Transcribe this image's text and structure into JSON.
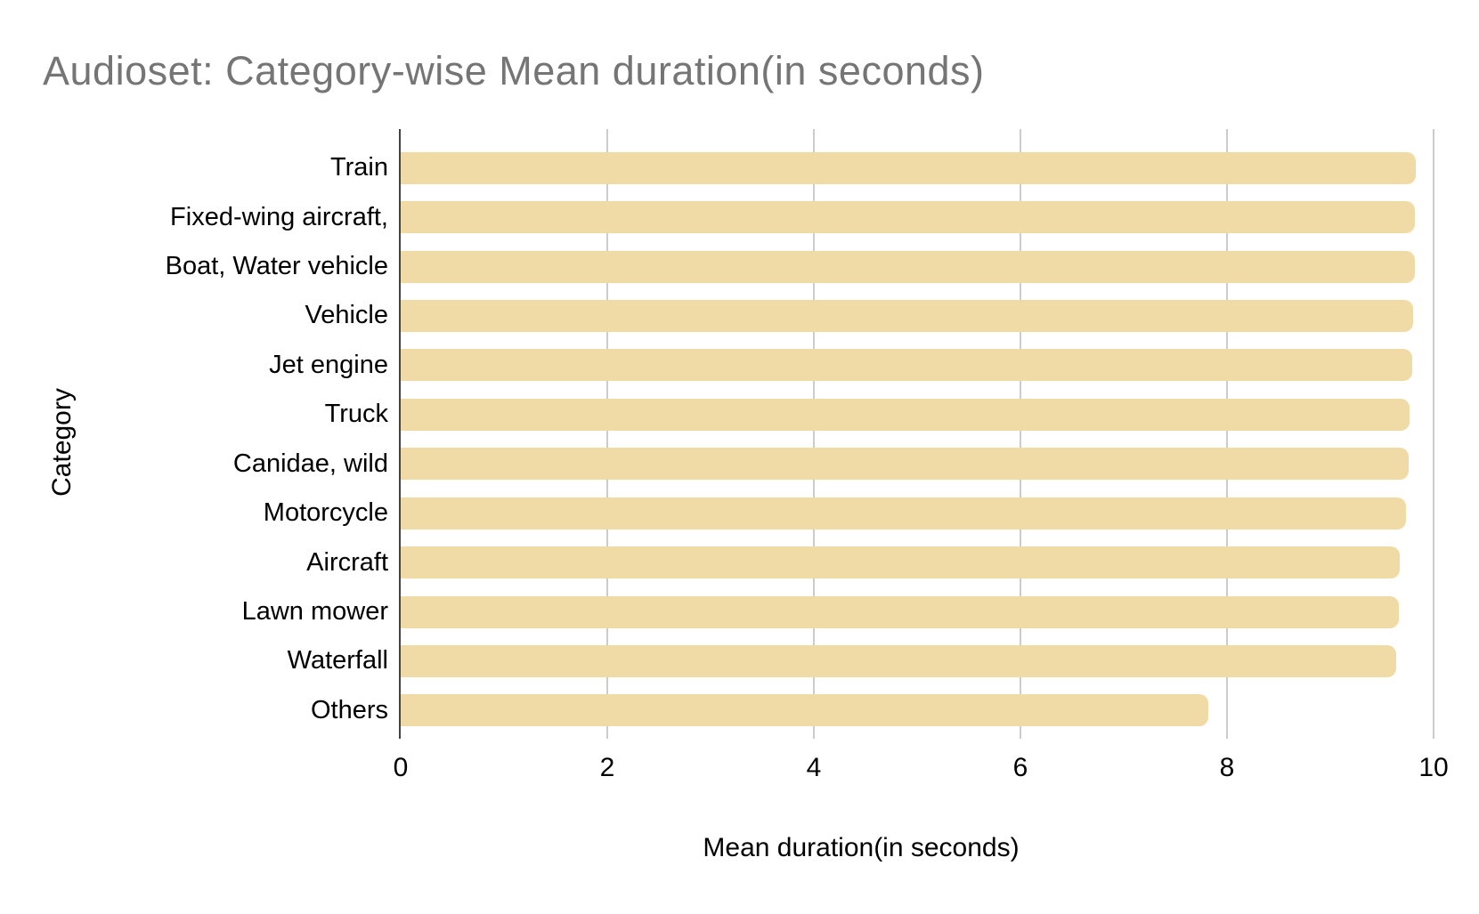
{
  "title": "Audioset: Category-wise Mean duration(in seconds)",
  "colors": {
    "bar": "#F0DBA6",
    "title_text": "#757575",
    "axis_text": "#000000",
    "gridline": "#CCCCCC",
    "axis_line": "#424242",
    "background": "#FFFFFF"
  },
  "chart_data": {
    "type": "bar",
    "orientation": "horizontal",
    "title": "Audioset: Category-wise Mean duration(in seconds)",
    "xlabel": "Mean duration(in seconds)",
    "ylabel": "Category",
    "categories": [
      "Train",
      "Fixed-wing aircraft,",
      "Boat, Water vehicle",
      "Vehicle",
      "Jet engine",
      "Truck",
      "Canidae, wild",
      "Motorcycle",
      "Aircraft",
      "Lawn mower",
      "Waterfall",
      "Others"
    ],
    "values": [
      9.83,
      9.82,
      9.82,
      9.8,
      9.79,
      9.77,
      9.76,
      9.73,
      9.67,
      9.66,
      9.64,
      7.82
    ],
    "xlim": [
      0,
      10
    ],
    "xticks": [
      0,
      2,
      4,
      6,
      8,
      10
    ],
    "grid": true,
    "legend": "none",
    "bar_color": "#F0DBA6"
  }
}
